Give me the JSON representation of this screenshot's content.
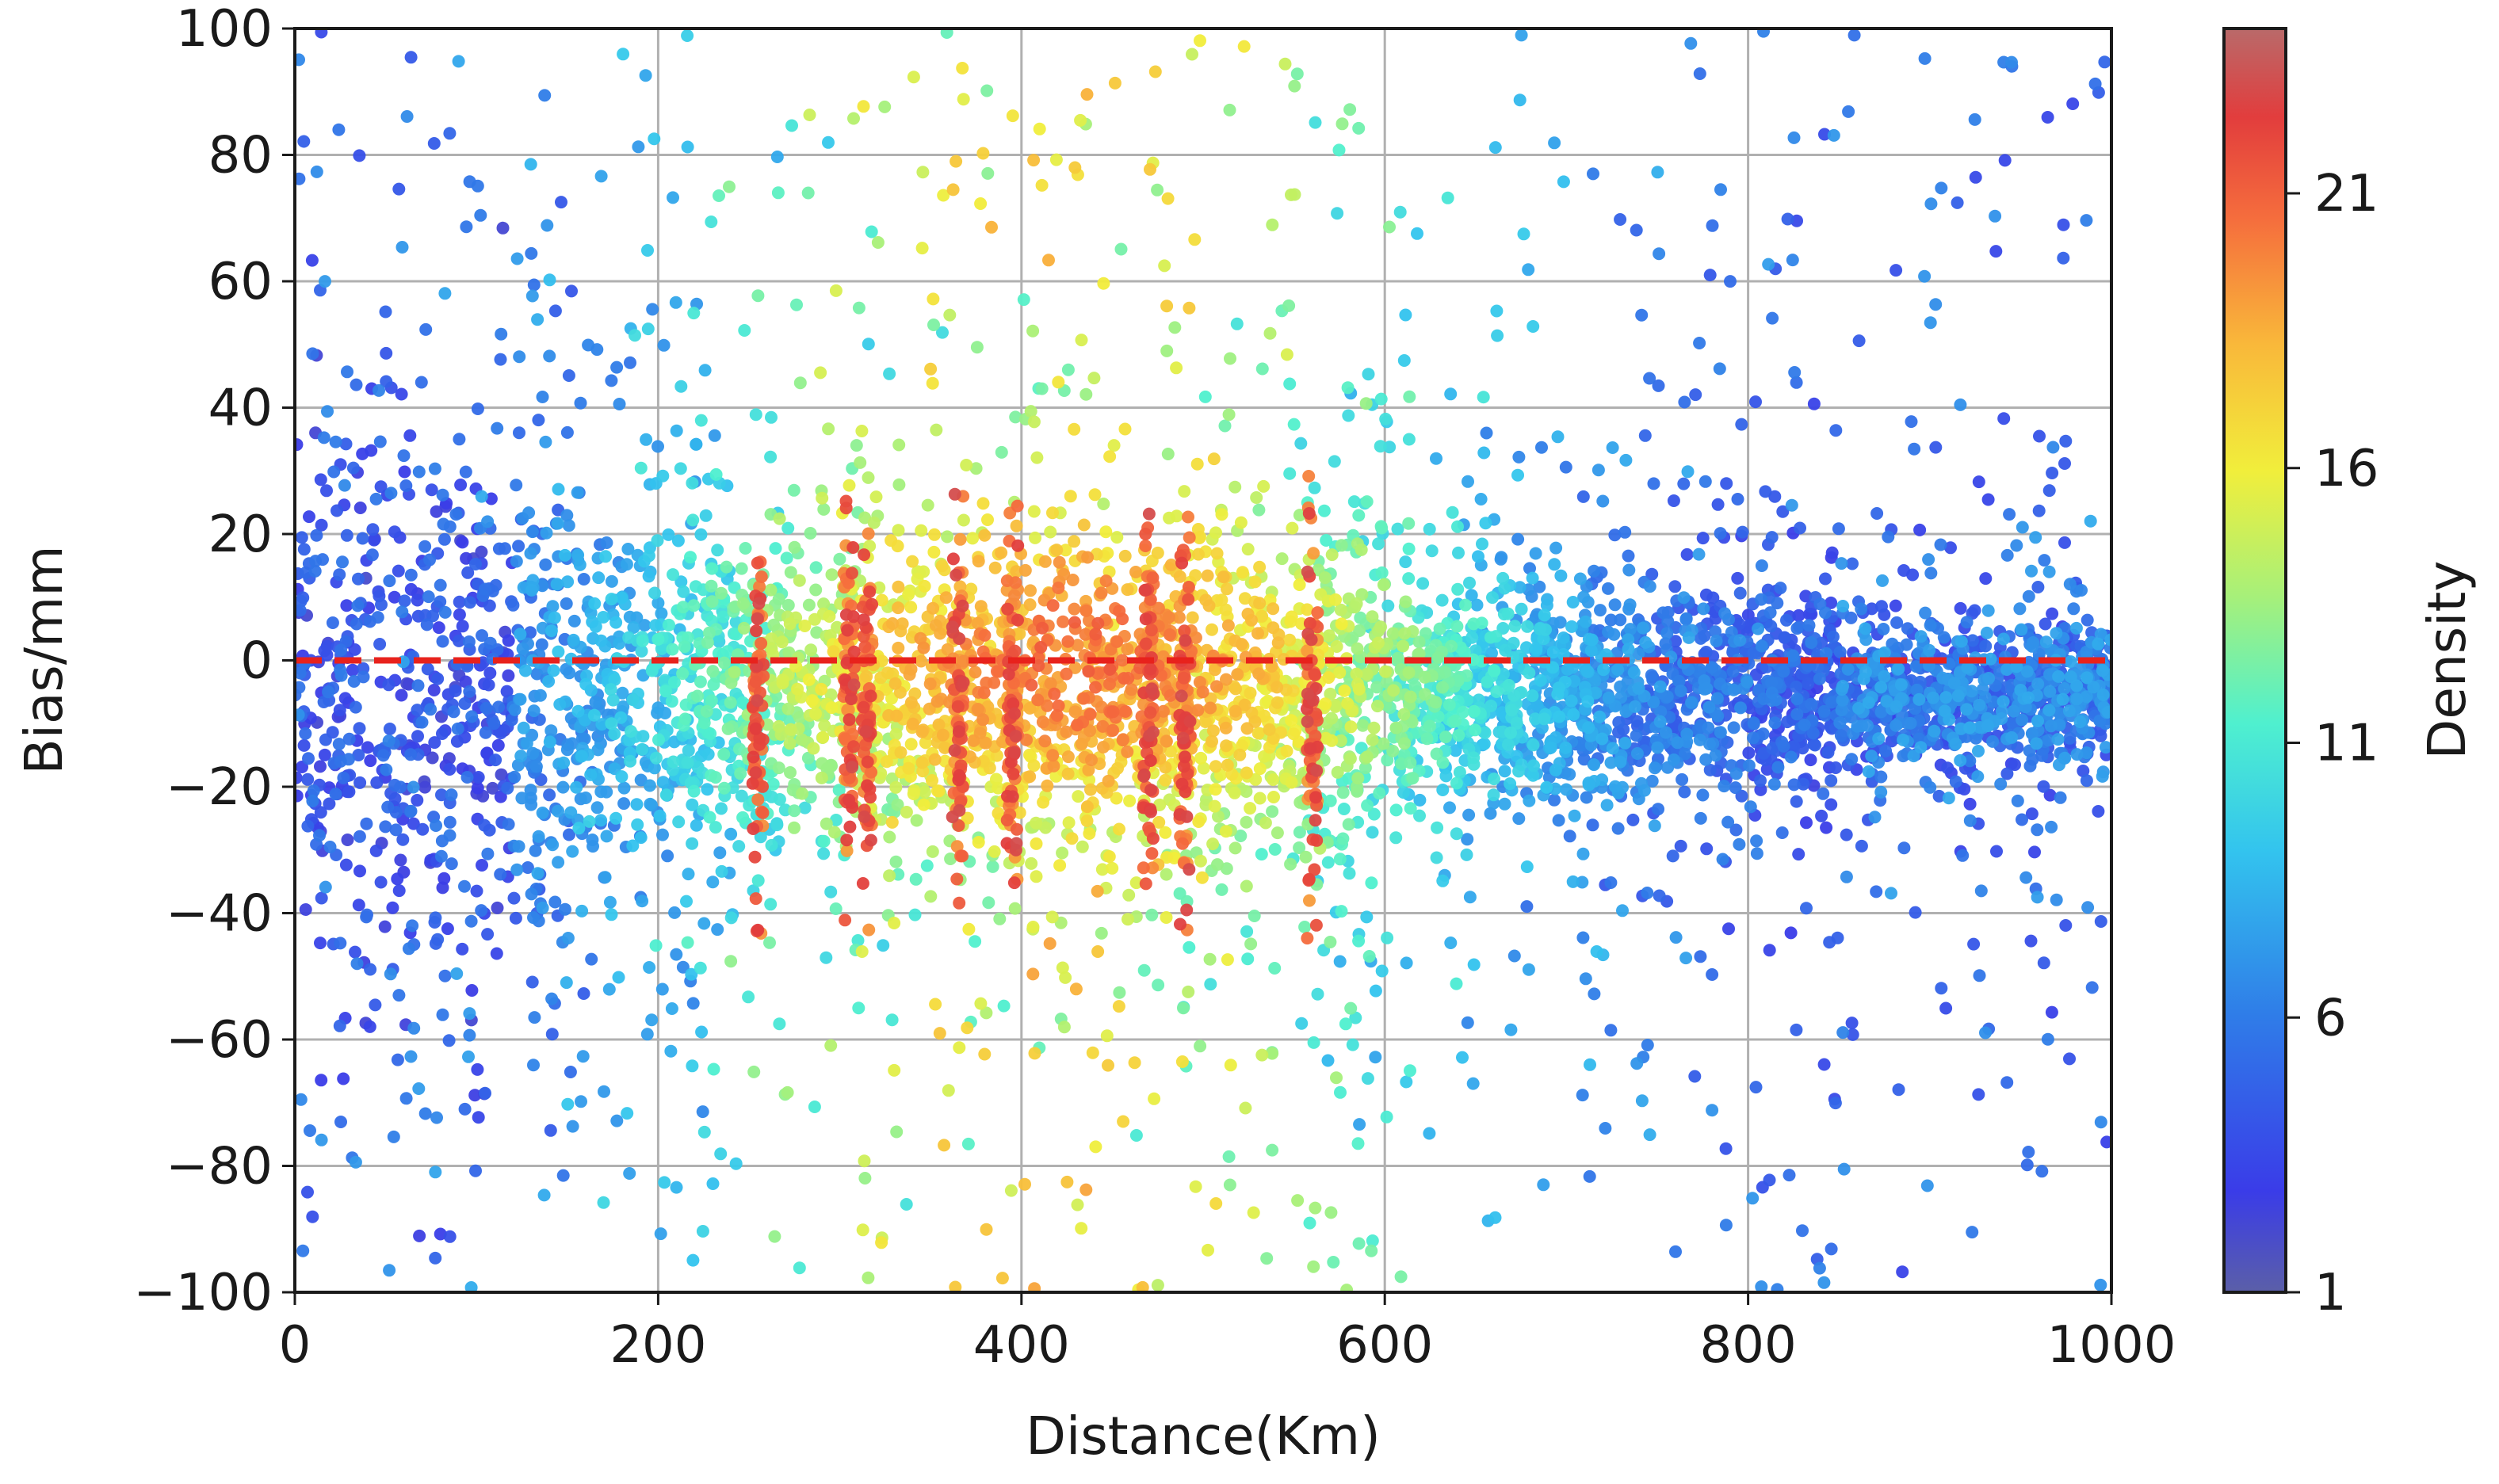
{
  "chart_data": {
    "type": "scatter",
    "xlabel": "Distance(Km)",
    "ylabel": "Bias/mm",
    "xlim": [
      0,
      1000
    ],
    "ylim": [
      -100,
      100
    ],
    "xticks": [
      "0",
      "200",
      "400",
      "600",
      "800",
      "1000"
    ],
    "yticks": [
      "100",
      "80",
      "60",
      "40",
      "20",
      "0",
      "−20",
      "−40",
      "−60",
      "−80",
      "−100"
    ],
    "grid": true,
    "reference_line": {
      "y": 0,
      "style": "dashed",
      "color": "#e8221c"
    },
    "colorbar": {
      "label": "Density",
      "range": [
        1,
        24
      ],
      "ticks": [
        "1",
        "6",
        "11",
        "16",
        "21"
      ],
      "colormap": "jet"
    },
    "points_note_samples": [
      {
        "x": 8,
        "y": -76,
        "density": 2
      },
      {
        "x": 30,
        "y": 68,
        "density": 3
      },
      {
        "x": 40,
        "y": 91,
        "density": 2
      },
      {
        "x": 82,
        "y": 98,
        "density": 3
      },
      {
        "x": 58,
        "y": -88,
        "density": 3
      },
      {
        "x": 150,
        "y": -93,
        "density": 4
      },
      {
        "x": 102,
        "y": -98,
        "density": 6
      },
      {
        "x": 255,
        "y": -72,
        "density": 21
      },
      {
        "x": 395,
        "y": 94,
        "density": 22
      },
      {
        "x": 412,
        "y": 87,
        "density": 21
      },
      {
        "x": 490,
        "y": -81,
        "density": 22
      },
      {
        "x": 490,
        "y": -61,
        "density": 21
      },
      {
        "x": 635,
        "y": -70,
        "density": 16
      },
      {
        "x": 755,
        "y": 96,
        "density": 6
      },
      {
        "x": 922,
        "y": 95,
        "density": 6
      },
      {
        "x": 943,
        "y": -78,
        "density": 9
      },
      {
        "x": 995,
        "y": -78,
        "density": 9
      },
      {
        "x": 1000,
        "y": -70,
        "density": 6
      },
      {
        "x": 872,
        "y": -66,
        "density": 9
      },
      {
        "x": 735,
        "y": -58,
        "density": 9
      }
    ]
  }
}
